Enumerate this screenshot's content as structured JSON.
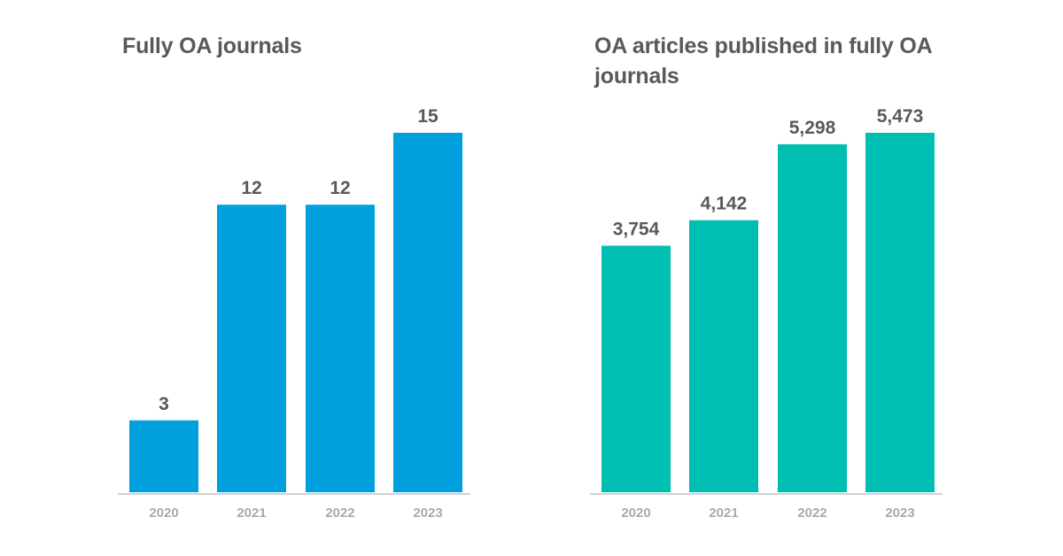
{
  "chart_data": [
    {
      "type": "bar",
      "title": "Fully OA journals",
      "categories": [
        "2020",
        "2021",
        "2022",
        "2023"
      ],
      "values": [
        3,
        12,
        12,
        15
      ],
      "value_labels": [
        "3",
        "12",
        "12",
        "15"
      ],
      "xlabel": "",
      "ylabel": "",
      "ylim": [
        0,
        15
      ],
      "color": "#00a0df",
      "grid": false,
      "legend": "none"
    },
    {
      "type": "bar",
      "title": "OA articles published in fully OA journals",
      "categories": [
        "2020",
        "2021",
        "2022",
        "2023"
      ],
      "values": [
        3754,
        4142,
        5298,
        5473
      ],
      "value_labels": [
        "3,754",
        "4,142",
        "5,298",
        "5,473"
      ],
      "xlabel": "",
      "ylabel": "",
      "ylim": [
        0,
        5473
      ],
      "color": "#00bfb2",
      "grid": false,
      "legend": "none"
    }
  ],
  "colors": {
    "text": "#58595b",
    "tick": "#a7a9ac",
    "axis": "#d1d3d4"
  }
}
